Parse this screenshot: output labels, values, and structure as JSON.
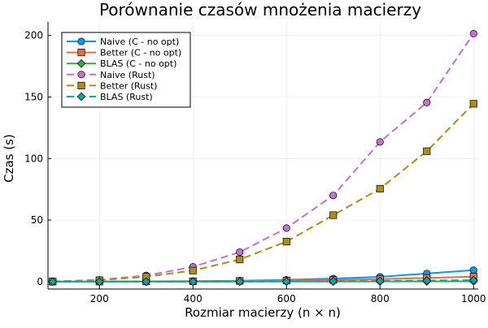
{
  "chart_data": {
    "type": "line",
    "title": "Porównanie czasów mnożenia macierzy",
    "xlabel": "Rozmiar macierzy (n × n)",
    "ylabel": "Czas (s)",
    "xlim": [
      90,
      1010
    ],
    "ylim": [
      -6,
      211
    ],
    "x_ticks": [
      200,
      400,
      600,
      800,
      1000
    ],
    "y_ticks": [
      0,
      50,
      100,
      150,
      200
    ],
    "grid": true,
    "legend_position": "top-left",
    "x": [
      100,
      200,
      300,
      400,
      500,
      600,
      700,
      800,
      900,
      1000
    ],
    "series": [
      {
        "name": "Naive (C - no opt)",
        "color": "#009af9",
        "marker": "circle",
        "dash": "solid",
        "values": [
          0.01,
          0.1,
          0.3,
          0.4,
          0.8,
          1.5,
          2.5,
          3.9,
          6.6,
          9.3
        ]
      },
      {
        "name": "Better (C - no opt)",
        "color": "#e26f46",
        "marker": "square",
        "dash": "solid",
        "values": [
          0.01,
          0.05,
          0.15,
          0.3,
          0.6,
          0.9,
          1.4,
          2.1,
          3.0,
          4.1
        ]
      },
      {
        "name": "BLAS (C - no opt)",
        "color": "#3da44d",
        "marker": "diamond",
        "dash": "solid",
        "values": [
          0.0,
          0.0,
          0.01,
          0.02,
          0.04,
          0.06,
          0.1,
          0.15,
          0.2,
          0.3
        ]
      },
      {
        "name": "Naive (Rust)",
        "color": "#c271d2",
        "marker": "circle",
        "dash": "dashed",
        "values": [
          0.2,
          1.5,
          5.0,
          12.0,
          24.0,
          43.5,
          70.0,
          113.5,
          145.5,
          201.5
        ]
      },
      {
        "name": "Better (Rust)",
        "color": "#ac8d18",
        "marker": "square",
        "dash": "dashed",
        "values": [
          0.1,
          1.2,
          4.0,
          9.0,
          18.0,
          32.5,
          54.0,
          75.5,
          106.0,
          144.5
        ]
      },
      {
        "name": "BLAS (Rust)",
        "color": "#00a9ad",
        "marker": "diamond",
        "dash": "dashed",
        "values": [
          0.0,
          0.0,
          0.02,
          0.05,
          0.1,
          0.2,
          0.35,
          0.6,
          0.9,
          1.2
        ]
      }
    ]
  }
}
